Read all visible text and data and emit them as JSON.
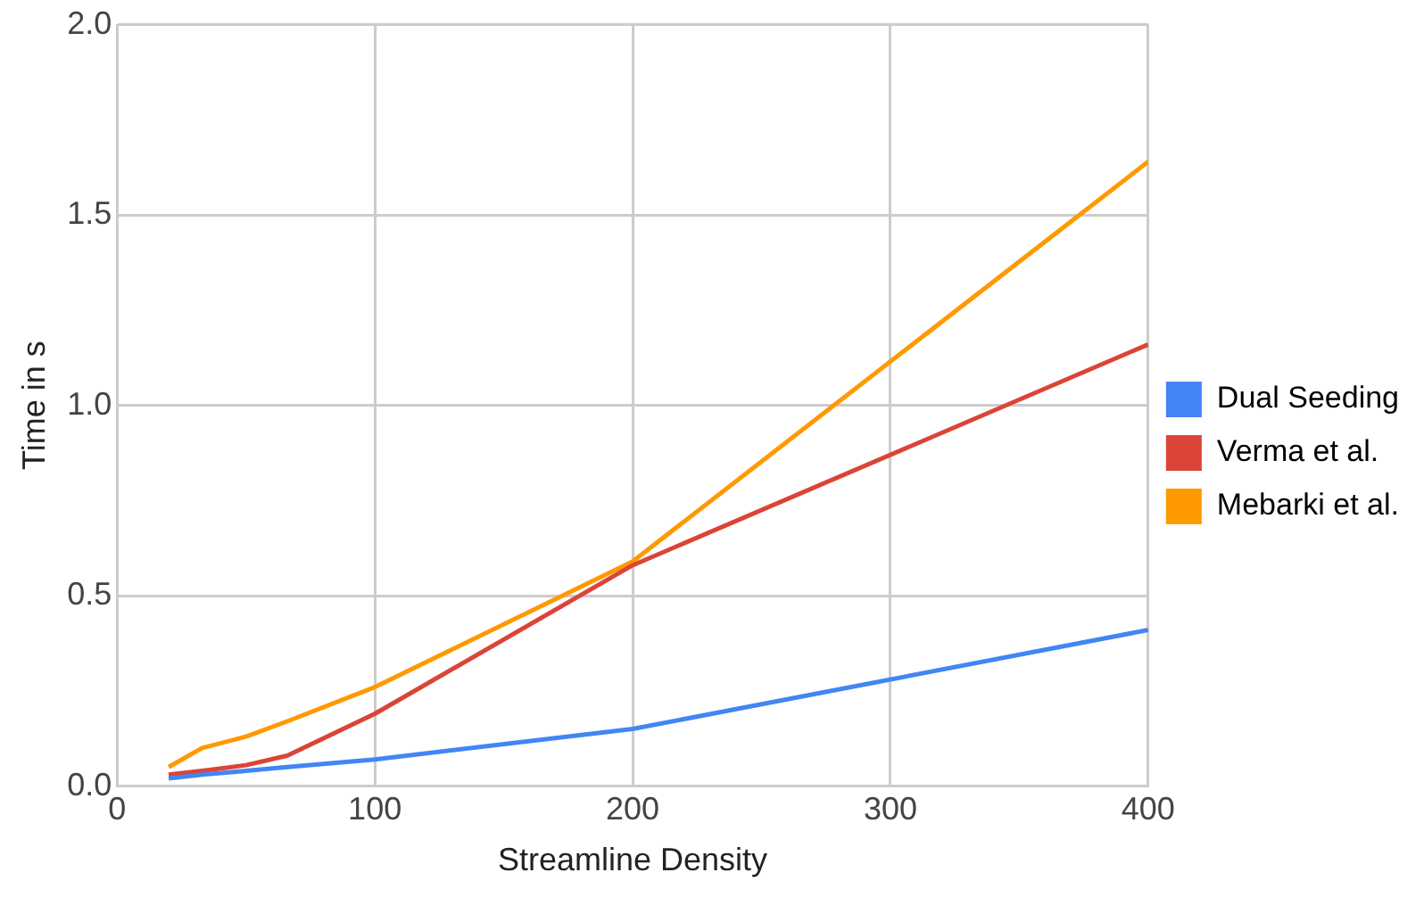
{
  "chart_data": {
    "type": "line",
    "xlabel": "Streamline Density",
    "ylabel": "Time in s",
    "x": [
      20,
      33,
      50,
      66,
      100,
      200,
      400
    ],
    "series": [
      {
        "name": "Dual Seeding",
        "color": "#4285f4",
        "values": [
          0.02,
          0.03,
          0.04,
          0.05,
          0.07,
          0.15,
          0.41
        ]
      },
      {
        "name": "Verma et al.",
        "color": "#db4437",
        "values": [
          0.03,
          0.04,
          0.055,
          0.08,
          0.19,
          0.58,
          1.16
        ]
      },
      {
        "name": "Mebarki et al.",
        "color": "#ff9900",
        "values": [
          0.05,
          0.1,
          0.13,
          0.17,
          0.26,
          0.59,
          1.64
        ]
      }
    ],
    "xlim": [
      0,
      400
    ],
    "xticks": [
      0,
      100,
      200,
      300,
      400
    ],
    "ylim": [
      0,
      2
    ],
    "yticks": [
      {
        "value": 0,
        "label": "0.0"
      },
      {
        "value": 0.5,
        "label": "0.5"
      },
      {
        "value": 1,
        "label": "1.0"
      },
      {
        "value": 1.5,
        "label": "1.5"
      },
      {
        "value": 2,
        "label": "2.0"
      }
    ],
    "grid": true,
    "legend": "right",
    "marker": "none",
    "line_style": "solid"
  }
}
